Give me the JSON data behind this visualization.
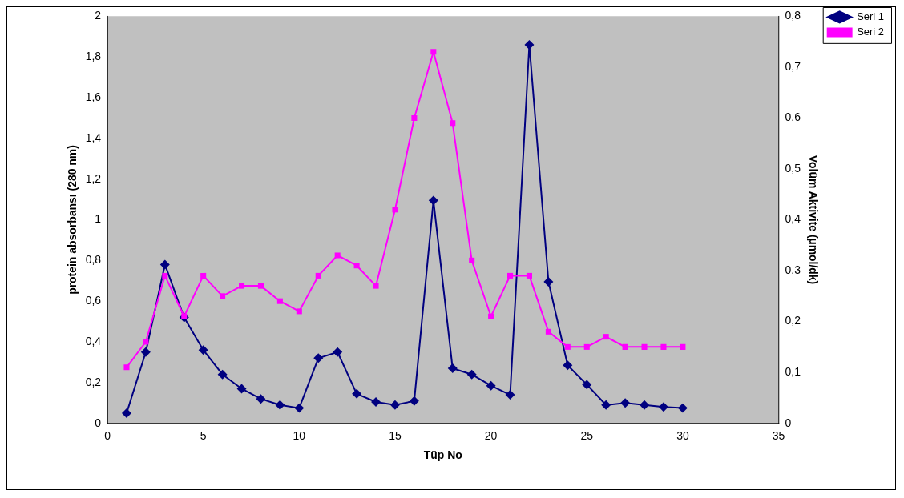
{
  "chart_data": {
    "type": "line",
    "xlabel": "Tüp No",
    "ylabel": "protein absorbansı (280 nm)",
    "y2label": "Volüm Aktivite (µmol/dk)",
    "x": [
      1,
      2,
      3,
      4,
      5,
      6,
      7,
      8,
      9,
      10,
      11,
      12,
      13,
      14,
      15,
      16,
      17,
      18,
      19,
      20,
      21,
      22,
      23,
      24,
      25,
      26,
      27,
      28,
      29,
      30
    ],
    "series": [
      {
        "name": "Seri 1",
        "color": "#000080",
        "marker": "diamond",
        "values": [
          0.05,
          0.35,
          0.78,
          0.52,
          0.36,
          0.24,
          0.17,
          0.12,
          0.09,
          0.075,
          0.32,
          0.35,
          0.145,
          0.105,
          0.09,
          0.11,
          1.095,
          0.27,
          0.24,
          0.185,
          0.14,
          1.86,
          0.695,
          0.285,
          0.19,
          0.09,
          0.1,
          0.09,
          0.08,
          0.075
        ]
      },
      {
        "name": "Seri 2",
        "color": "#ff00ff",
        "marker": "square",
        "axis": "y2",
        "values": [
          0.11,
          0.16,
          0.29,
          0.21,
          0.29,
          0.25,
          0.27,
          0.27,
          0.24,
          0.22,
          0.29,
          0.33,
          0.31,
          0.27,
          0.42,
          0.6,
          0.73,
          0.59,
          0.32,
          0.21,
          0.29,
          0.29,
          0.18,
          0.15,
          0.15,
          0.17,
          0.15,
          0.15,
          0.15,
          0.15
        ]
      }
    ],
    "xlim": [
      0,
      35
    ],
    "xticks": [
      0,
      5,
      10,
      15,
      20,
      25,
      30,
      35
    ],
    "ylim": [
      0,
      2
    ],
    "yticks": [
      0,
      {
        "value": 0.2,
        "label": "0,2"
      },
      {
        "value": 0.4,
        "label": "0,4"
      },
      {
        "value": 0.6,
        "label": "0,6"
      },
      {
        "value": 0.8,
        "label": "0,8"
      },
      1,
      {
        "value": 1.2,
        "label": "1,2"
      },
      {
        "value": 1.4,
        "label": "1,4"
      },
      {
        "value": 1.6,
        "label": "1,6"
      },
      {
        "value": 1.8,
        "label": "1,8"
      },
      2
    ],
    "y2lim": [
      0,
      0.8
    ],
    "y2ticks": [
      0,
      {
        "value": 0.1,
        "label": "0,1"
      },
      {
        "value": 0.2,
        "label": "0,2"
      },
      {
        "value": 0.3,
        "label": "0,3"
      },
      {
        "value": 0.4,
        "label": "0,4"
      },
      {
        "value": 0.5,
        "label": "0,5"
      },
      {
        "value": 0.6,
        "label": "0,6"
      },
      {
        "value": 0.7,
        "label": "0,7"
      },
      {
        "value": 0.8,
        "label": "0,8"
      }
    ],
    "grid": false,
    "legend": "top right"
  }
}
